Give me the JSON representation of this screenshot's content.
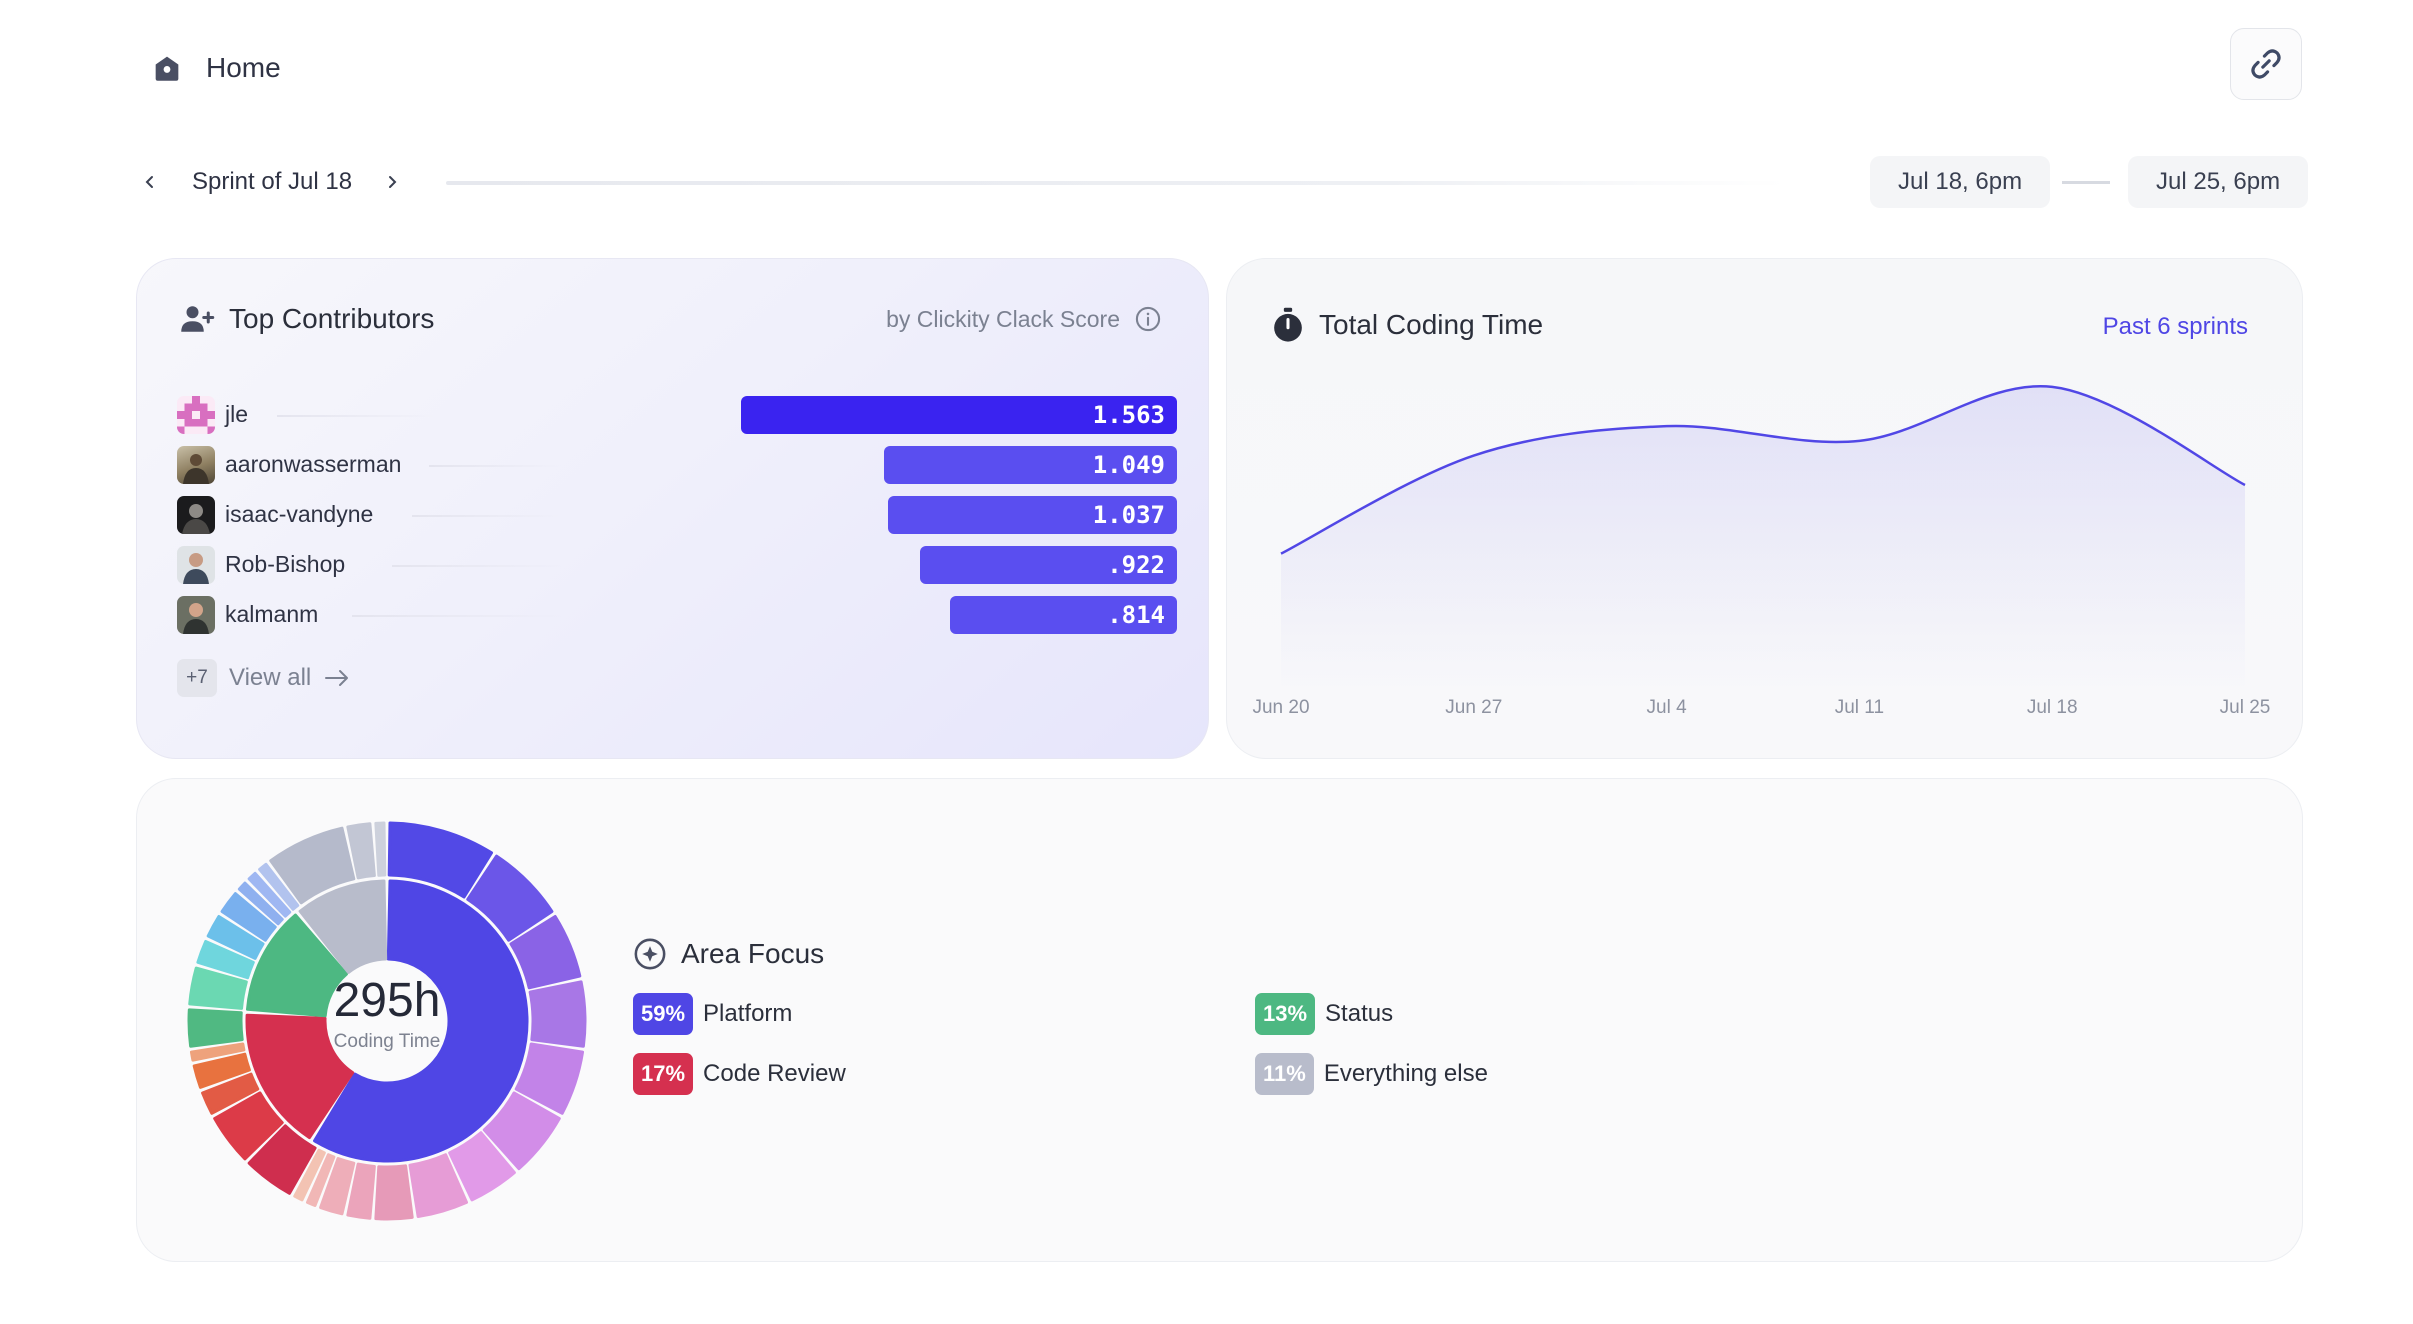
{
  "header": {
    "title": "Home",
    "home_icon": "home-icon",
    "link_icon": "link-icon"
  },
  "sprint": {
    "label": "Sprint of Jul 18",
    "start": "Jul 18, 6pm",
    "end": "Jul 25, 6pm"
  },
  "contributors": {
    "title": "Top Contributors",
    "subtitle": "by Clickity Clack Score",
    "items": [
      {
        "name": "jle",
        "score": "1.563",
        "value": 1.563,
        "color": "#3a23f0"
      },
      {
        "name": "aaronwasserman",
        "score": "1.049",
        "value": 1.049,
        "color": "#5a4ef0"
      },
      {
        "name": "isaac-vandyne",
        "score": "1.037",
        "value": 1.037,
        "color": "#5a4ef0"
      },
      {
        "name": "Rob-Bishop",
        "score": ".922",
        "value": 0.922,
        "color": "#5a4ef0"
      },
      {
        "name": "kalmanm",
        "score": ".814",
        "value": 0.814,
        "color": "#5a4ef0"
      }
    ],
    "more_count": "+7",
    "view_all": "View all"
  },
  "coding_time": {
    "title": "Total Coding Time",
    "range_link": "Past 6 sprints",
    "chart_data": {
      "type": "area",
      "title": "Total Coding Time",
      "categories": [
        "Jun 20",
        "Jun 27",
        "Jul 4",
        "Jul 11",
        "Jul 18",
        "Jul 25"
      ],
      "values": [
        140,
        240,
        270,
        255,
        310,
        210
      ],
      "ylim": [
        0,
        420
      ],
      "grid": false,
      "xlabel": "",
      "ylabel": ""
    }
  },
  "area_focus": {
    "title": "Area Focus",
    "total": "295h",
    "total_label": "Coding Time",
    "legend": [
      {
        "pct": "59%",
        "label": "Platform",
        "color": "#4f46e5"
      },
      {
        "pct": "13%",
        "label": "Status",
        "color": "#4db882"
      },
      {
        "pct": "17%",
        "label": "Code Review",
        "color": "#d5304f"
      },
      {
        "pct": "11%",
        "label": "Everything else",
        "color": "#b8bccb"
      }
    ],
    "chart_data": {
      "type": "pie",
      "inner": [
        {
          "label": "Platform",
          "value": 59,
          "color": "#4f46e5"
        },
        {
          "label": "Code Review",
          "value": 17,
          "color": "#d5304f"
        },
        {
          "label": "Status",
          "value": 13,
          "color": "#4db882"
        },
        {
          "label": "Everything else",
          "value": 11,
          "color": "#b8bccb"
        }
      ],
      "outer": [
        {
          "value": 8,
          "color": "#5249e6"
        },
        {
          "value": 6,
          "color": "#6b56e8"
        },
        {
          "value": 5,
          "color": "#8a63e6"
        },
        {
          "value": 5,
          "color": "#a877e6"
        },
        {
          "value": 5,
          "color": "#c283e8"
        },
        {
          "value": 5,
          "color": "#d28de8"
        },
        {
          "value": 4,
          "color": "#e19ae8"
        },
        {
          "value": 4,
          "color": "#e69cd6"
        },
        {
          "value": 3,
          "color": "#e69ab8"
        },
        {
          "value": 2,
          "color": "#eba4bb"
        },
        {
          "value": 2,
          "color": "#eeaeb9"
        },
        {
          "value": 1,
          "color": "#f1b7b6"
        },
        {
          "value": 1,
          "color": "#f3c3b3"
        },
        {
          "value": 4,
          "color": "#cf2e4e"
        },
        {
          "value": 4,
          "color": "#dc3b48"
        },
        {
          "value": 2,
          "color": "#e25b45"
        },
        {
          "value": 2,
          "color": "#e8723f"
        },
        {
          "value": 1,
          "color": "#eea27c"
        },
        {
          "value": 3,
          "color": "#50b982"
        },
        {
          "value": 3,
          "color": "#6bd8b2"
        },
        {
          "value": 2,
          "color": "#6fd6dd"
        },
        {
          "value": 2,
          "color": "#6cc0ea"
        },
        {
          "value": 2,
          "color": "#79b0ee"
        },
        {
          "value": 1,
          "color": "#8fb0ef"
        },
        {
          "value": 1,
          "color": "#9fb7f2"
        },
        {
          "value": 1,
          "color": "#b2c3ee"
        },
        {
          "value": 6,
          "color": "#b5bacb"
        },
        {
          "value": 2,
          "color": "#c2c6d4"
        },
        {
          "value": 1,
          "color": "#cdd1dc"
        }
      ]
    }
  }
}
